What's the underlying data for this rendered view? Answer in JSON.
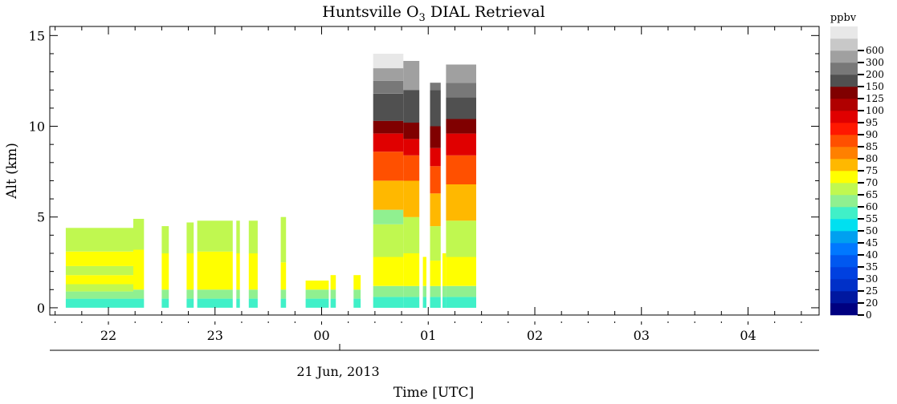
{
  "chart_data": {
    "type": "heatmap",
    "title": "Huntsville O",
    "title_sub": "3",
    "title_rest": " DIAL Retrieval",
    "ylabel": "Alt (km)",
    "xlabel": "Time [UTC]",
    "date_label": "21 Jun, 2013",
    "ylim": [
      -0.4,
      15.5
    ],
    "xlim": [
      "21:27",
      "04:40"
    ],
    "y_ticks": [
      "0",
      "5",
      "10",
      "15"
    ],
    "x_ticks": [
      "22",
      "23",
      "00",
      "01",
      "02",
      "03",
      "04"
    ],
    "colorbar": {
      "unit": "ppbv",
      "labels": [
        "0",
        "20",
        "25",
        "30",
        "35",
        "40",
        "45",
        "50",
        "55",
        "60",
        "65",
        "70",
        "75",
        "80",
        "85",
        "90",
        "95",
        "100",
        "125",
        "150",
        "200",
        "300",
        "600"
      ],
      "colors": [
        "#000080",
        "#0018a0",
        "#0030c8",
        "#0040e0",
        "#0058f0",
        "#0078ff",
        "#00a0f0",
        "#00e0f0",
        "#40f0c8",
        "#90f090",
        "#c0f850",
        "#ffff00",
        "#ffb800",
        "#ff8000",
        "#ff5000",
        "#ff1800",
        "#e00000",
        "#b00000",
        "#800000",
        "#505050",
        "#787878",
        "#a0a0a0",
        "#c8c8c8",
        "#e8e8e8"
      ]
    },
    "profiles": [
      {
        "start": "21:36",
        "end": "22:14",
        "bands": [
          [
            0,
            "#40f0c8"
          ],
          [
            0.5,
            "#90f090"
          ],
          [
            0.9,
            "#c0f850"
          ],
          [
            1.3,
            "#ffff00"
          ],
          [
            1.8,
            "#c0f850"
          ],
          [
            2.3,
            "#ffff00"
          ],
          [
            3.1,
            "#c0f850"
          ],
          [
            4.4,
            null
          ]
        ]
      },
      {
        "start": "22:14",
        "end": "22:20",
        "bands": [
          [
            0,
            "#40f0c8"
          ],
          [
            0.5,
            "#90f090"
          ],
          [
            1.0,
            "#ffff00"
          ],
          [
            3.2,
            "#c0f850"
          ],
          [
            4.9,
            null
          ]
        ]
      },
      {
        "start": "22:30",
        "end": "22:34",
        "bands": [
          [
            0,
            "#40f0c8"
          ],
          [
            0.5,
            "#90f090"
          ],
          [
            1.0,
            "#ffff00"
          ],
          [
            3.0,
            "#c0f850"
          ],
          [
            4.5,
            null
          ]
        ]
      },
      {
        "start": "22:44",
        "end": "22:48",
        "bands": [
          [
            0,
            "#40f0c8"
          ],
          [
            0.5,
            "#90f090"
          ],
          [
            1.0,
            "#ffff00"
          ],
          [
            3.0,
            "#c0f850"
          ],
          [
            4.7,
            null
          ]
        ]
      },
      {
        "start": "22:50",
        "end": "23:10",
        "bands": [
          [
            0,
            "#40f0c8"
          ],
          [
            0.5,
            "#90f090"
          ],
          [
            1.0,
            "#ffff00"
          ],
          [
            3.1,
            "#c0f850"
          ],
          [
            4.8,
            null
          ]
        ]
      },
      {
        "start": "23:12",
        "end": "23:14",
        "bands": [
          [
            0,
            "#40f0c8"
          ],
          [
            0.5,
            "#90f090"
          ],
          [
            1.0,
            "#ffff00"
          ],
          [
            3.0,
            "#c0f850"
          ],
          [
            4.8,
            null
          ]
        ]
      },
      {
        "start": "23:19",
        "end": "23:24",
        "bands": [
          [
            0,
            "#40f0c8"
          ],
          [
            0.5,
            "#90f090"
          ],
          [
            1.0,
            "#ffff00"
          ],
          [
            3.0,
            "#c0f850"
          ],
          [
            4.8,
            null
          ]
        ]
      },
      {
        "start": "23:37",
        "end": "23:40",
        "bands": [
          [
            0,
            "#40f0c8"
          ],
          [
            0.5,
            "#90f090"
          ],
          [
            1.0,
            "#ffff00"
          ],
          [
            2.5,
            "#c0f850"
          ],
          [
            5.0,
            null
          ]
        ]
      },
      {
        "start": "23:51",
        "end": "24:04",
        "bands": [
          [
            0,
            "#40f0c8"
          ],
          [
            0.5,
            "#90f090"
          ],
          [
            1.0,
            "#ffff00"
          ],
          [
            1.5,
            null
          ]
        ]
      },
      {
        "start": "24:05",
        "end": "24:08",
        "bands": [
          [
            0,
            "#40f0c8"
          ],
          [
            0.5,
            "#90f090"
          ],
          [
            1.0,
            "#ffff00"
          ],
          [
            1.8,
            null
          ]
        ]
      },
      {
        "start": "24:18",
        "end": "24:22",
        "bands": [
          [
            0,
            "#40f0c8"
          ],
          [
            0.5,
            "#90f090"
          ],
          [
            1.0,
            "#ffff00"
          ],
          [
            1.8,
            null
          ]
        ]
      },
      {
        "start": "24:29",
        "end": "24:46",
        "bands": [
          [
            0,
            "#40f0c8"
          ],
          [
            0.6,
            "#90f090"
          ],
          [
            1.2,
            "#ffff00"
          ],
          [
            2.8,
            "#c0f850"
          ],
          [
            4.6,
            "#90f090"
          ],
          [
            5.4,
            "#ffb800"
          ],
          [
            7.0,
            "#ff5000"
          ],
          [
            8.6,
            "#e00000"
          ],
          [
            9.6,
            "#800000"
          ],
          [
            10.3,
            "#505050"
          ],
          [
            11.8,
            "#787878"
          ],
          [
            12.5,
            "#a0a0a0"
          ],
          [
            13.2,
            "#e8e8e8"
          ],
          [
            14.0,
            null
          ]
        ]
      },
      {
        "start": "24:46",
        "end": "24:55",
        "bands": [
          [
            0,
            "#40f0c8"
          ],
          [
            0.6,
            "#90f090"
          ],
          [
            1.2,
            "#ffff00"
          ],
          [
            3.0,
            "#c0f850"
          ],
          [
            5.0,
            "#ffb800"
          ],
          [
            7.0,
            "#ff5000"
          ],
          [
            8.4,
            "#e00000"
          ],
          [
            9.3,
            "#800000"
          ],
          [
            10.2,
            "#505050"
          ],
          [
            12.0,
            "#a0a0a0"
          ],
          [
            13.6,
            null
          ]
        ]
      },
      {
        "start": "24:57",
        "end": "24:59",
        "bands": [
          [
            0,
            "#40f0c8"
          ],
          [
            0.6,
            "#90f090"
          ],
          [
            1.2,
            "#ffff00"
          ],
          [
            2.8,
            null
          ]
        ]
      },
      {
        "start": "25:01",
        "end": "25:07",
        "bands": [
          [
            0,
            "#40f0c8"
          ],
          [
            0.6,
            "#90f090"
          ],
          [
            1.2,
            "#ffff00"
          ],
          [
            2.6,
            "#c0f850"
          ],
          [
            4.5,
            "#ffb800"
          ],
          [
            6.3,
            "#ff5000"
          ],
          [
            7.8,
            "#e00000"
          ],
          [
            8.8,
            "#800000"
          ],
          [
            10.0,
            "#505050"
          ],
          [
            12.0,
            "#787878"
          ],
          [
            12.4,
            null
          ]
        ]
      },
      {
        "start": "25:08",
        "end": "25:10",
        "bands": [
          [
            0,
            "#40f0c8"
          ],
          [
            0.6,
            "#90f090"
          ],
          [
            1.2,
            "#ffff00"
          ],
          [
            3.0,
            null
          ]
        ]
      },
      {
        "start": "25:10",
        "end": "25:27",
        "bands": [
          [
            0,
            "#40f0c8"
          ],
          [
            0.6,
            "#90f090"
          ],
          [
            1.2,
            "#ffff00"
          ],
          [
            2.8,
            "#c0f850"
          ],
          [
            4.8,
            "#ffb800"
          ],
          [
            6.8,
            "#ff5000"
          ],
          [
            8.4,
            "#e00000"
          ],
          [
            9.6,
            "#800000"
          ],
          [
            10.4,
            "#505050"
          ],
          [
            11.6,
            "#787878"
          ],
          [
            12.4,
            "#a0a0a0"
          ],
          [
            13.4,
            null
          ]
        ]
      }
    ]
  }
}
